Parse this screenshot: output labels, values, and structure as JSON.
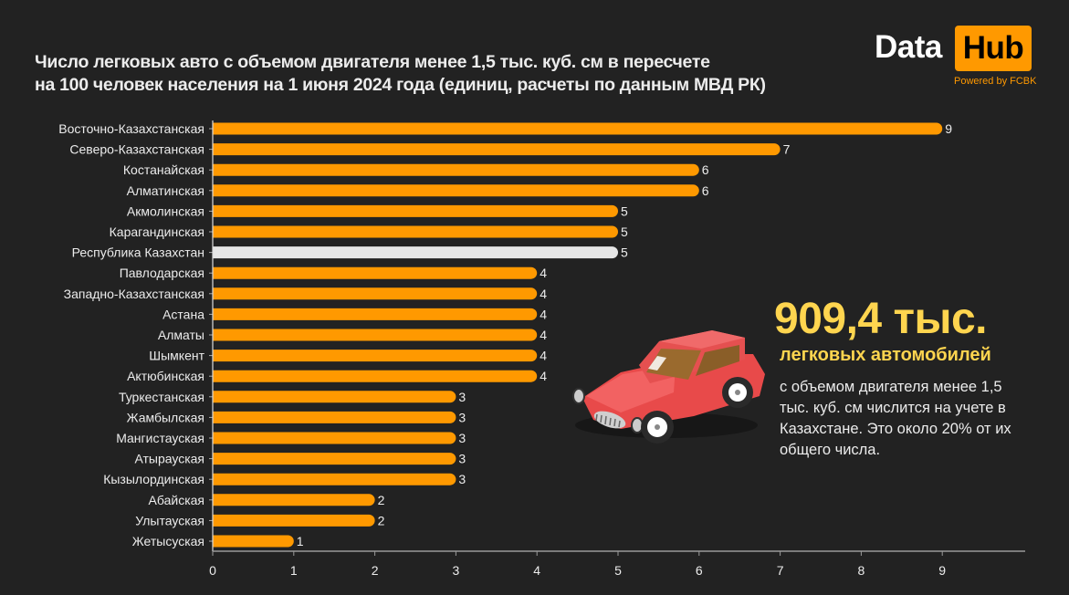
{
  "header": {
    "title_line1": "Число легковых авто с объемом двигателя менее 1,5 тыс. куб. см в пересчете",
    "title_line2": "на 100 человек населения на 1 июня 2024 года (единиц, расчеты по данным МВД РК)"
  },
  "logo": {
    "word1": "Data",
    "word2": "Hub",
    "tagline": "Powered by FCBK"
  },
  "highlight": {
    "big_number": "909,4 тыс.",
    "subtitle": "легковых автомобилей",
    "description": "с объемом двигателя менее 1,5 тыс. куб. см числится на учете в Казахстане. Это около 20% от их общего числа.",
    "icon": "red-car-illustration"
  },
  "colors": {
    "background": "#222222",
    "bar": "#ff9900",
    "bar_highlight": "#e6e6e6",
    "accent_yellow": "#ffd54f"
  },
  "chart_data": {
    "type": "bar",
    "orientation": "horizontal",
    "title": "Число легковых авто с объемом двигателя менее 1,5 тыс. куб. см в пересчете на 100 человек населения на 1 июня 2024 года (единиц, расчеты по данным МВД РК)",
    "xlabel": "",
    "ylabel": "",
    "xlim": [
      0,
      10
    ],
    "xticks": [
      0,
      1,
      2,
      3,
      4,
      5,
      6,
      7,
      8,
      9
    ],
    "grid": false,
    "categories": [
      "Восточно-Казахстанская",
      "Северо-Казахстанская",
      "Костанайская",
      "Алматинская",
      "Акмолинская",
      "Карагандинская",
      "Республика Казахстан",
      "Павлодарская",
      "Западно-Казахстанская",
      "Астана",
      "Алматы",
      "Шымкент",
      "Актюбинская",
      "Туркестанская",
      "Жамбылская",
      "Мангистауская",
      "Атырауская",
      "Кызылординская",
      "Абайская",
      "Улытауская",
      "Жетысуская"
    ],
    "values": [
      9,
      7,
      6,
      6,
      5,
      5,
      5,
      4,
      4,
      4,
      4,
      4,
      4,
      3,
      3,
      3,
      3,
      3,
      2,
      2,
      1
    ],
    "highlight_category": "Республика Казахстан"
  }
}
